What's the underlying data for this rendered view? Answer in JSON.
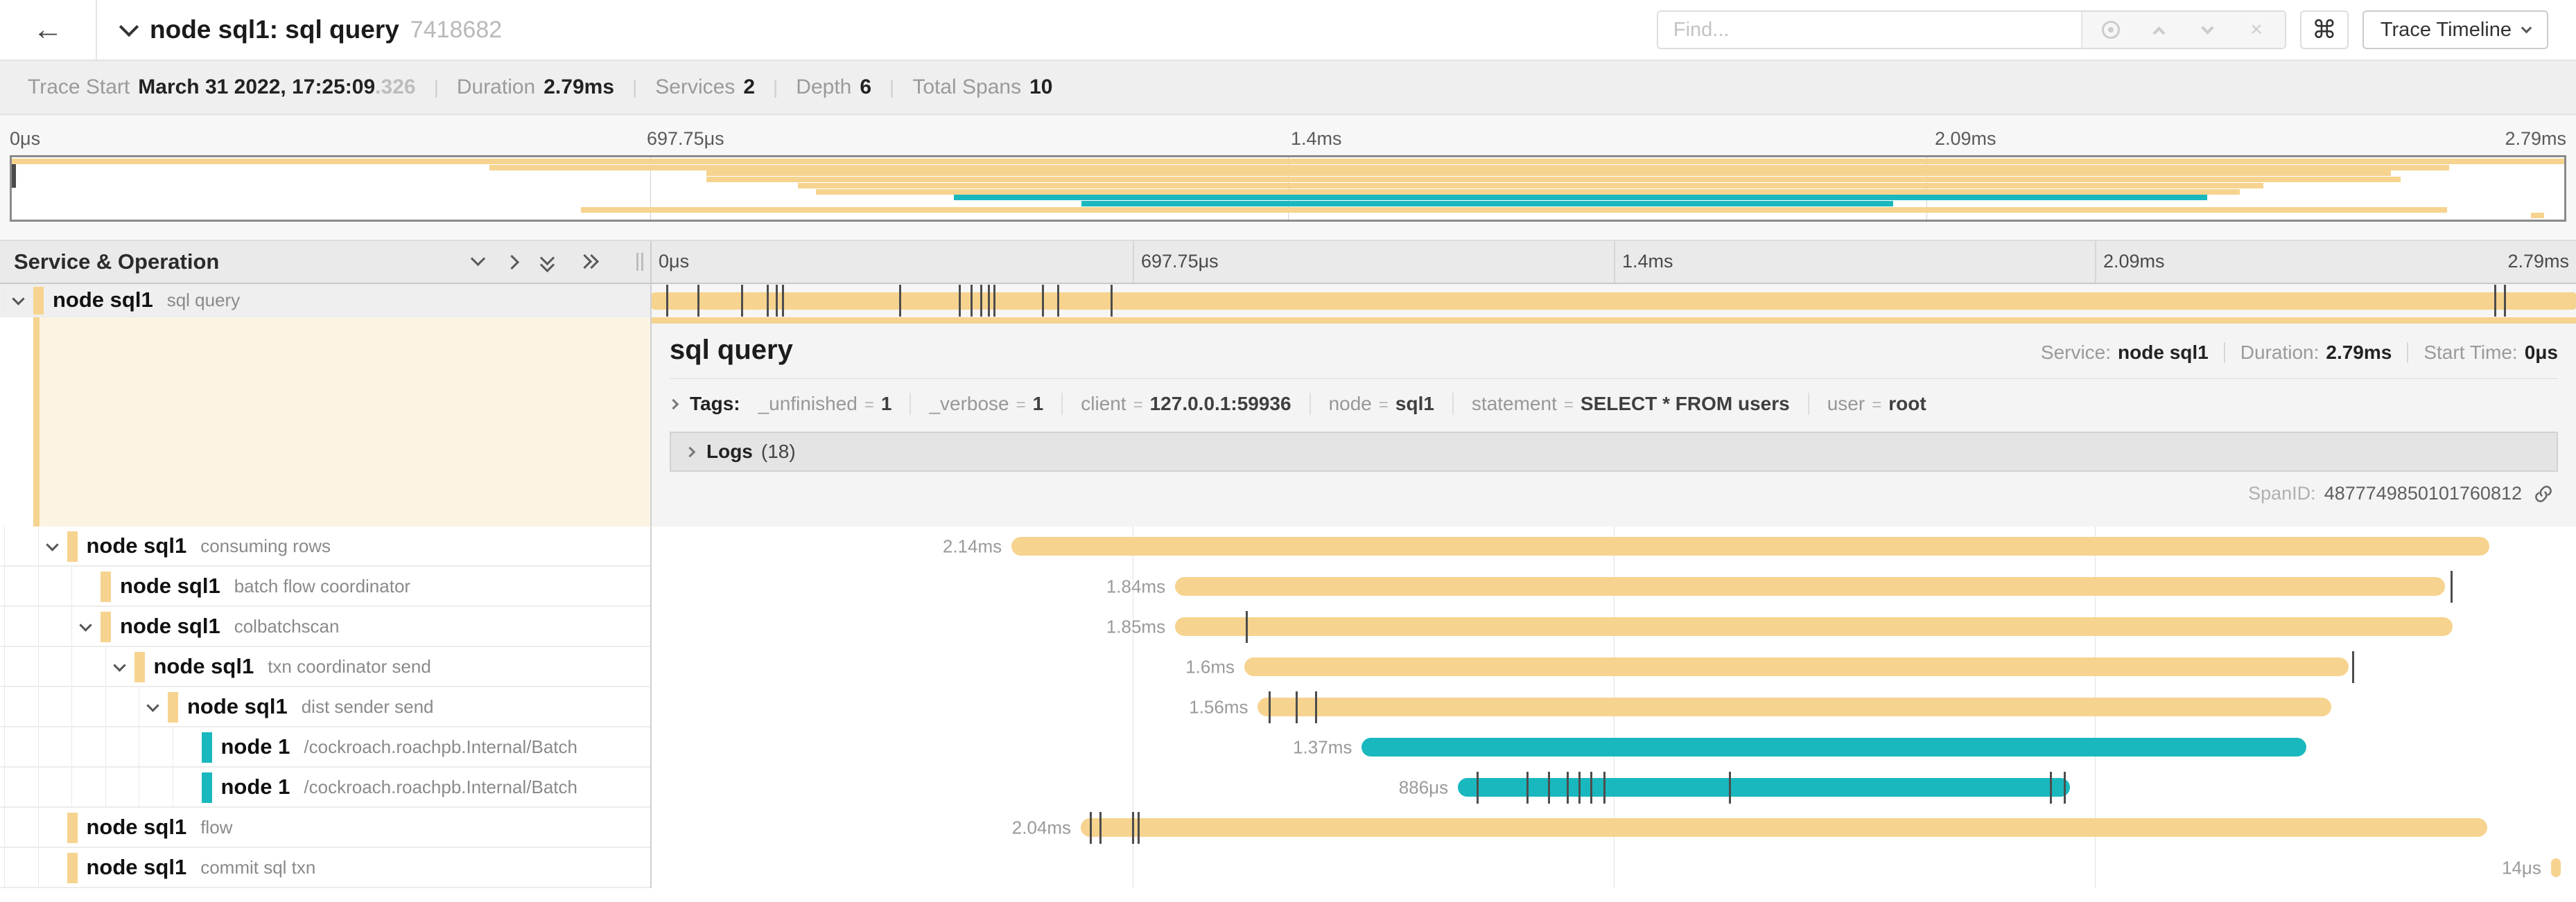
{
  "colors": {
    "tan": "#F6D38F",
    "teal": "#19B8BE",
    "selected_bg": "#FCF4E3"
  },
  "header": {
    "back_arrow": "←",
    "title": "node sql1: sql query",
    "trace_id": "7418682",
    "find_placeholder": "Find...",
    "cmd_symbol": "⌘",
    "view_button": "Trace Timeline",
    "find_clear": "×"
  },
  "stats": [
    {
      "label": "Trace Start",
      "value": "March 31 2022, 17:25:09",
      "muted": ".326"
    },
    {
      "label": "Duration",
      "value": "2.79ms"
    },
    {
      "label": "Services",
      "value": "2"
    },
    {
      "label": "Depth",
      "value": "6"
    },
    {
      "label": "Total Spans",
      "value": "10"
    }
  ],
  "ruler_ticks": [
    "0μs",
    "697.75μs",
    "1.4ms",
    "2.09ms",
    "2.79ms"
  ],
  "grid": {
    "left_header": "Service & Operation"
  },
  "spans": [
    {
      "service": "node sql1",
      "operation": "sql query",
      "depth": 0,
      "chevron": true,
      "color": "tan",
      "selected": true,
      "start": 0,
      "end": 100,
      "duration_label": "",
      "ticks": [
        0.8,
        2.4,
        4.7,
        6.0,
        6.5,
        6.8,
        12.9,
        16.0,
        16.6,
        17.1,
        17.5,
        17.8,
        20.3,
        21.1,
        23.9,
        95.8,
        96.3
      ]
    },
    {
      "service": "node sql1",
      "operation": "consuming rows",
      "depth": 1,
      "chevron": true,
      "color": "tan",
      "start": 18.7,
      "end": 95.5,
      "duration_label": "2.14ms",
      "ticks": []
    },
    {
      "service": "node sql1",
      "operation": "batch flow coordinator",
      "depth": 2,
      "chevron": false,
      "color": "tan",
      "start": 27.2,
      "end": 93.2,
      "duration_label": "1.84ms",
      "ticks": [
        93.5
      ]
    },
    {
      "service": "node sql1",
      "operation": "colbatchscan",
      "depth": 2,
      "chevron": true,
      "color": "tan",
      "start": 27.2,
      "end": 93.6,
      "duration_label": "1.85ms",
      "ticks": [
        30.9
      ]
    },
    {
      "service": "node sql1",
      "operation": "txn coordinator send",
      "depth": 3,
      "chevron": true,
      "color": "tan",
      "start": 30.8,
      "end": 88.2,
      "duration_label": "1.6ms",
      "ticks": [
        88.4
      ]
    },
    {
      "service": "node sql1",
      "operation": "dist sender send",
      "depth": 4,
      "chevron": true,
      "color": "tan",
      "start": 31.5,
      "end": 87.3,
      "duration_label": "1.56ms",
      "ticks": [
        32.1,
        33.5,
        34.5
      ]
    },
    {
      "service": "node 1",
      "operation": "/cockroach.roachpb.Internal/Batch",
      "depth": 5,
      "chevron": false,
      "color": "teal",
      "start": 36.9,
      "end": 86.0,
      "duration_label": "1.37ms",
      "ticks": []
    },
    {
      "service": "node 1",
      "operation": "/cockroach.roachpb.Internal/Batch",
      "depth": 5,
      "chevron": false,
      "color": "teal",
      "start": 41.9,
      "end": 73.7,
      "duration_label": "886μs",
      "ticks": [
        42.9,
        45.5,
        46.6,
        47.6,
        48.2,
        48.8,
        49.5,
        56.0,
        72.7,
        73.4
      ]
    },
    {
      "service": "node sql1",
      "operation": "flow",
      "depth": 1,
      "chevron": false,
      "color": "tan",
      "start": 22.3,
      "end": 95.4,
      "duration_label": "2.04ms",
      "ticks": [
        22.8,
        23.3,
        25.0,
        25.3
      ]
    },
    {
      "service": "node sql1",
      "operation": "commit sql txn",
      "depth": 1,
      "chevron": false,
      "color": "tan",
      "start": 98.7,
      "end": 99.2,
      "duration_label": "14μs",
      "ticks": []
    }
  ],
  "detail": {
    "title": "sql query",
    "service_label": "Service:",
    "service": "node sql1",
    "duration_label": "Duration:",
    "duration": "2.79ms",
    "start_label": "Start Time:",
    "start": "0μs",
    "tags_label": "Tags:",
    "tags": [
      {
        "key": "_unfinished",
        "value": "1"
      },
      {
        "key": "_verbose",
        "value": "1"
      },
      {
        "key": "client",
        "value": "127.0.0.1:59936"
      },
      {
        "key": "node",
        "value": "sql1"
      },
      {
        "key": "statement",
        "value": "SELECT * FROM users"
      },
      {
        "key": "user",
        "value": "root"
      }
    ],
    "logs_label": "Logs",
    "logs_count": "(18)",
    "spanid_label": "SpanID:",
    "spanid": "4877749850101760812"
  }
}
